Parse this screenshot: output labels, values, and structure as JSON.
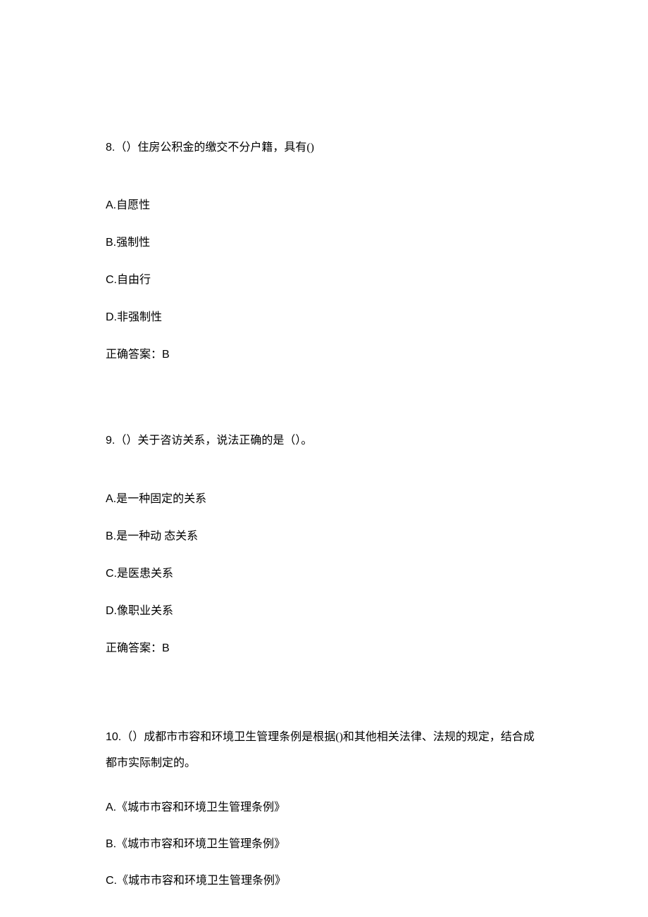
{
  "document": {
    "background_color": "#ffffff",
    "text_color": "#000000",
    "font_size": 16,
    "font_family": "SimSun",
    "questions": [
      {
        "number": "8.",
        "text": "（）住房公积金的缴交不分户籍，具有()",
        "options": [
          {
            "letter": "A.",
            "text": "自愿性"
          },
          {
            "letter": "B.",
            "text": "强制性"
          },
          {
            "letter": "C.",
            "text": "自由行"
          },
          {
            "letter": "D.",
            "text": "非强制性"
          }
        ],
        "answer_label": "正确答案：",
        "answer_value": "B"
      },
      {
        "number": "9.",
        "text": "（）关于咨访关系，说法正确的是（）。",
        "options": [
          {
            "letter": "A.",
            "text": "是一种固定的关系"
          },
          {
            "letter": "B.",
            "text": "是一种动 态关系"
          },
          {
            "letter": "C.",
            "text": "是医患关系"
          },
          {
            "letter": "D.",
            "text": "像职业关系"
          }
        ],
        "answer_label": "正确答案：",
        "answer_value": "B"
      },
      {
        "number": "10.",
        "text": "（）成都市市容和环境卫生管理条例是根据()和其他相关法律、法规的规定，结合成都市实际制定的。",
        "options": [
          {
            "letter": "A.",
            "text": "《城市市容和环境卫生管理条例》"
          },
          {
            "letter": "B.",
            "text": "《城市市容和环境卫生管理条例》"
          },
          {
            "letter": "C.",
            "text": "《城市市容和环境卫生管理条例》"
          }
        ],
        "answer_label": "",
        "answer_value": ""
      }
    ]
  }
}
